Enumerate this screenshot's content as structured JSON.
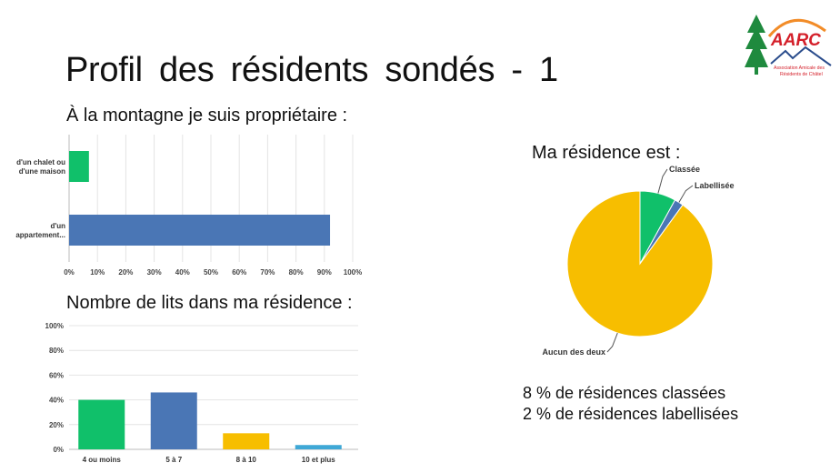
{
  "slide": {
    "title": "Profil des résidents sondés - 1",
    "owner_question": "À la montagne je suis propriétaire :",
    "beds_question": "Nombre de lits dans ma résidence :",
    "residence_question": "Ma résidence est :",
    "note_classified": "8 % de résidences classées",
    "note_labelled": "2 % de résidences labellisées"
  },
  "logo": {
    "acronym": "AARC",
    "line1": "Association Amicale des",
    "line2": "Résidents de Châtel",
    "colors": {
      "tree": "#1f8a3e",
      "text": "#d4202a",
      "arc": "#f28c28",
      "mountain": "#2b4d8c"
    }
  },
  "chart_data": [
    {
      "type": "bar",
      "orientation": "horizontal",
      "categories": [
        {
          "line1": "d'un chalet ou",
          "line2": "d'une maison"
        },
        {
          "line1": "d'un",
          "line2": "appartement..."
        }
      ],
      "values": [
        7,
        92
      ],
      "colors": [
        "#10c06a",
        "#4a76b5"
      ],
      "xlim": [
        0,
        100
      ],
      "xticks": [
        "0%",
        "10%",
        "20%",
        "30%",
        "40%",
        "50%",
        "60%",
        "70%",
        "80%",
        "90%",
        "100%"
      ],
      "grid": true
    },
    {
      "type": "bar",
      "orientation": "vertical",
      "categories": [
        "4 ou moins",
        "5 à 7",
        "8 à 10",
        "10 et plus"
      ],
      "values": [
        40,
        46,
        13,
        3.5
      ],
      "colors": [
        "#10c06a",
        "#4a76b5",
        "#f7be00",
        "#3fa8d6"
      ],
      "ylim": [
        0,
        100
      ],
      "yticks": [
        "0%",
        "20%",
        "40%",
        "60%",
        "80%",
        "100%"
      ],
      "grid": true
    },
    {
      "type": "pie",
      "slices": [
        {
          "label": "Classée",
          "value": 8,
          "color": "#10c06a"
        },
        {
          "label": "Labellisée",
          "value": 2,
          "color": "#4a76b5"
        },
        {
          "label": "Aucun des deux",
          "value": 90,
          "color": "#f7be00"
        }
      ]
    }
  ]
}
